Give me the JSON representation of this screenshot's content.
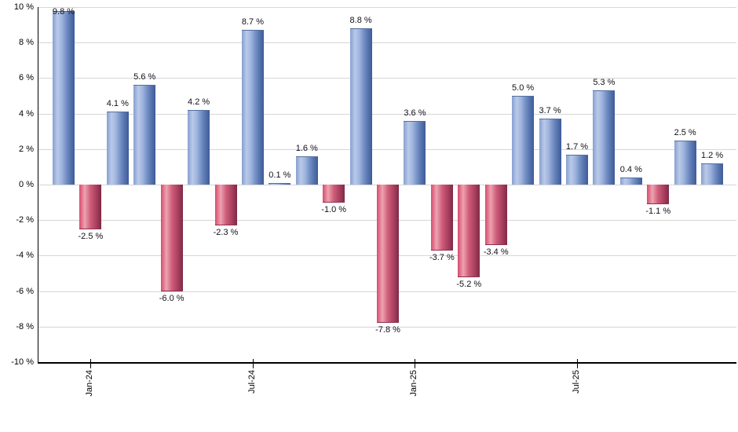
{
  "chart_data": {
    "type": "bar",
    "title": "",
    "xlabel": "",
    "ylabel": "",
    "values": [
      9.8,
      -2.5,
      4.1,
      5.6,
      -6.0,
      4.2,
      -2.3,
      8.7,
      0.1,
      1.6,
      -1.0,
      8.8,
      -7.8,
      3.6,
      -3.7,
      -5.2,
      -3.4,
      5.0,
      3.7,
      1.7,
      5.3,
      0.4,
      -1.1,
      2.5,
      1.2
    ],
    "bar_value_labels": [
      "9.8 %",
      "-2.5 %",
      "4.1 %",
      "5.6 %",
      "-6.0 %",
      "4.2 %",
      "-2.3 %",
      "8.7 %",
      "0.1 %",
      "1.6 %",
      "-1.0 %",
      "8.8 %",
      "-7.8 %",
      "3.6 %",
      "-3.7 %",
      "-5.2 %",
      "-3.4 %",
      "5.0 %",
      "3.7 %",
      "1.7 %",
      "5.3 %",
      "0.4 %",
      "-1.1 %",
      "2.5 %",
      "1.2 %"
    ],
    "x_ticks": [
      {
        "index": 1,
        "label": "Jan-24"
      },
      {
        "index": 7,
        "label": "Jul-24"
      },
      {
        "index": 13,
        "label": "Jan-25"
      },
      {
        "index": 19,
        "label": "Jul-25"
      }
    ],
    "y_tick_labels": [
      "10 %",
      "8 %",
      "6 %",
      "4 %",
      "2 %",
      "0 %",
      "-2 %",
      "-4 %",
      "-6 %",
      "-8 %",
      "-10 %"
    ],
    "y_tick_values": [
      10,
      8,
      6,
      4,
      2,
      0,
      -2,
      -4,
      -6,
      -8,
      -10
    ],
    "ylim": [
      -10,
      10
    ],
    "grid": true,
    "legend": "none",
    "colors": {
      "positive_bar": "#7a98cd",
      "negative_bar": "#c94e6f",
      "gridline": "#d6d6d6",
      "axis": "#000000",
      "label_text": "#10101a"
    }
  }
}
